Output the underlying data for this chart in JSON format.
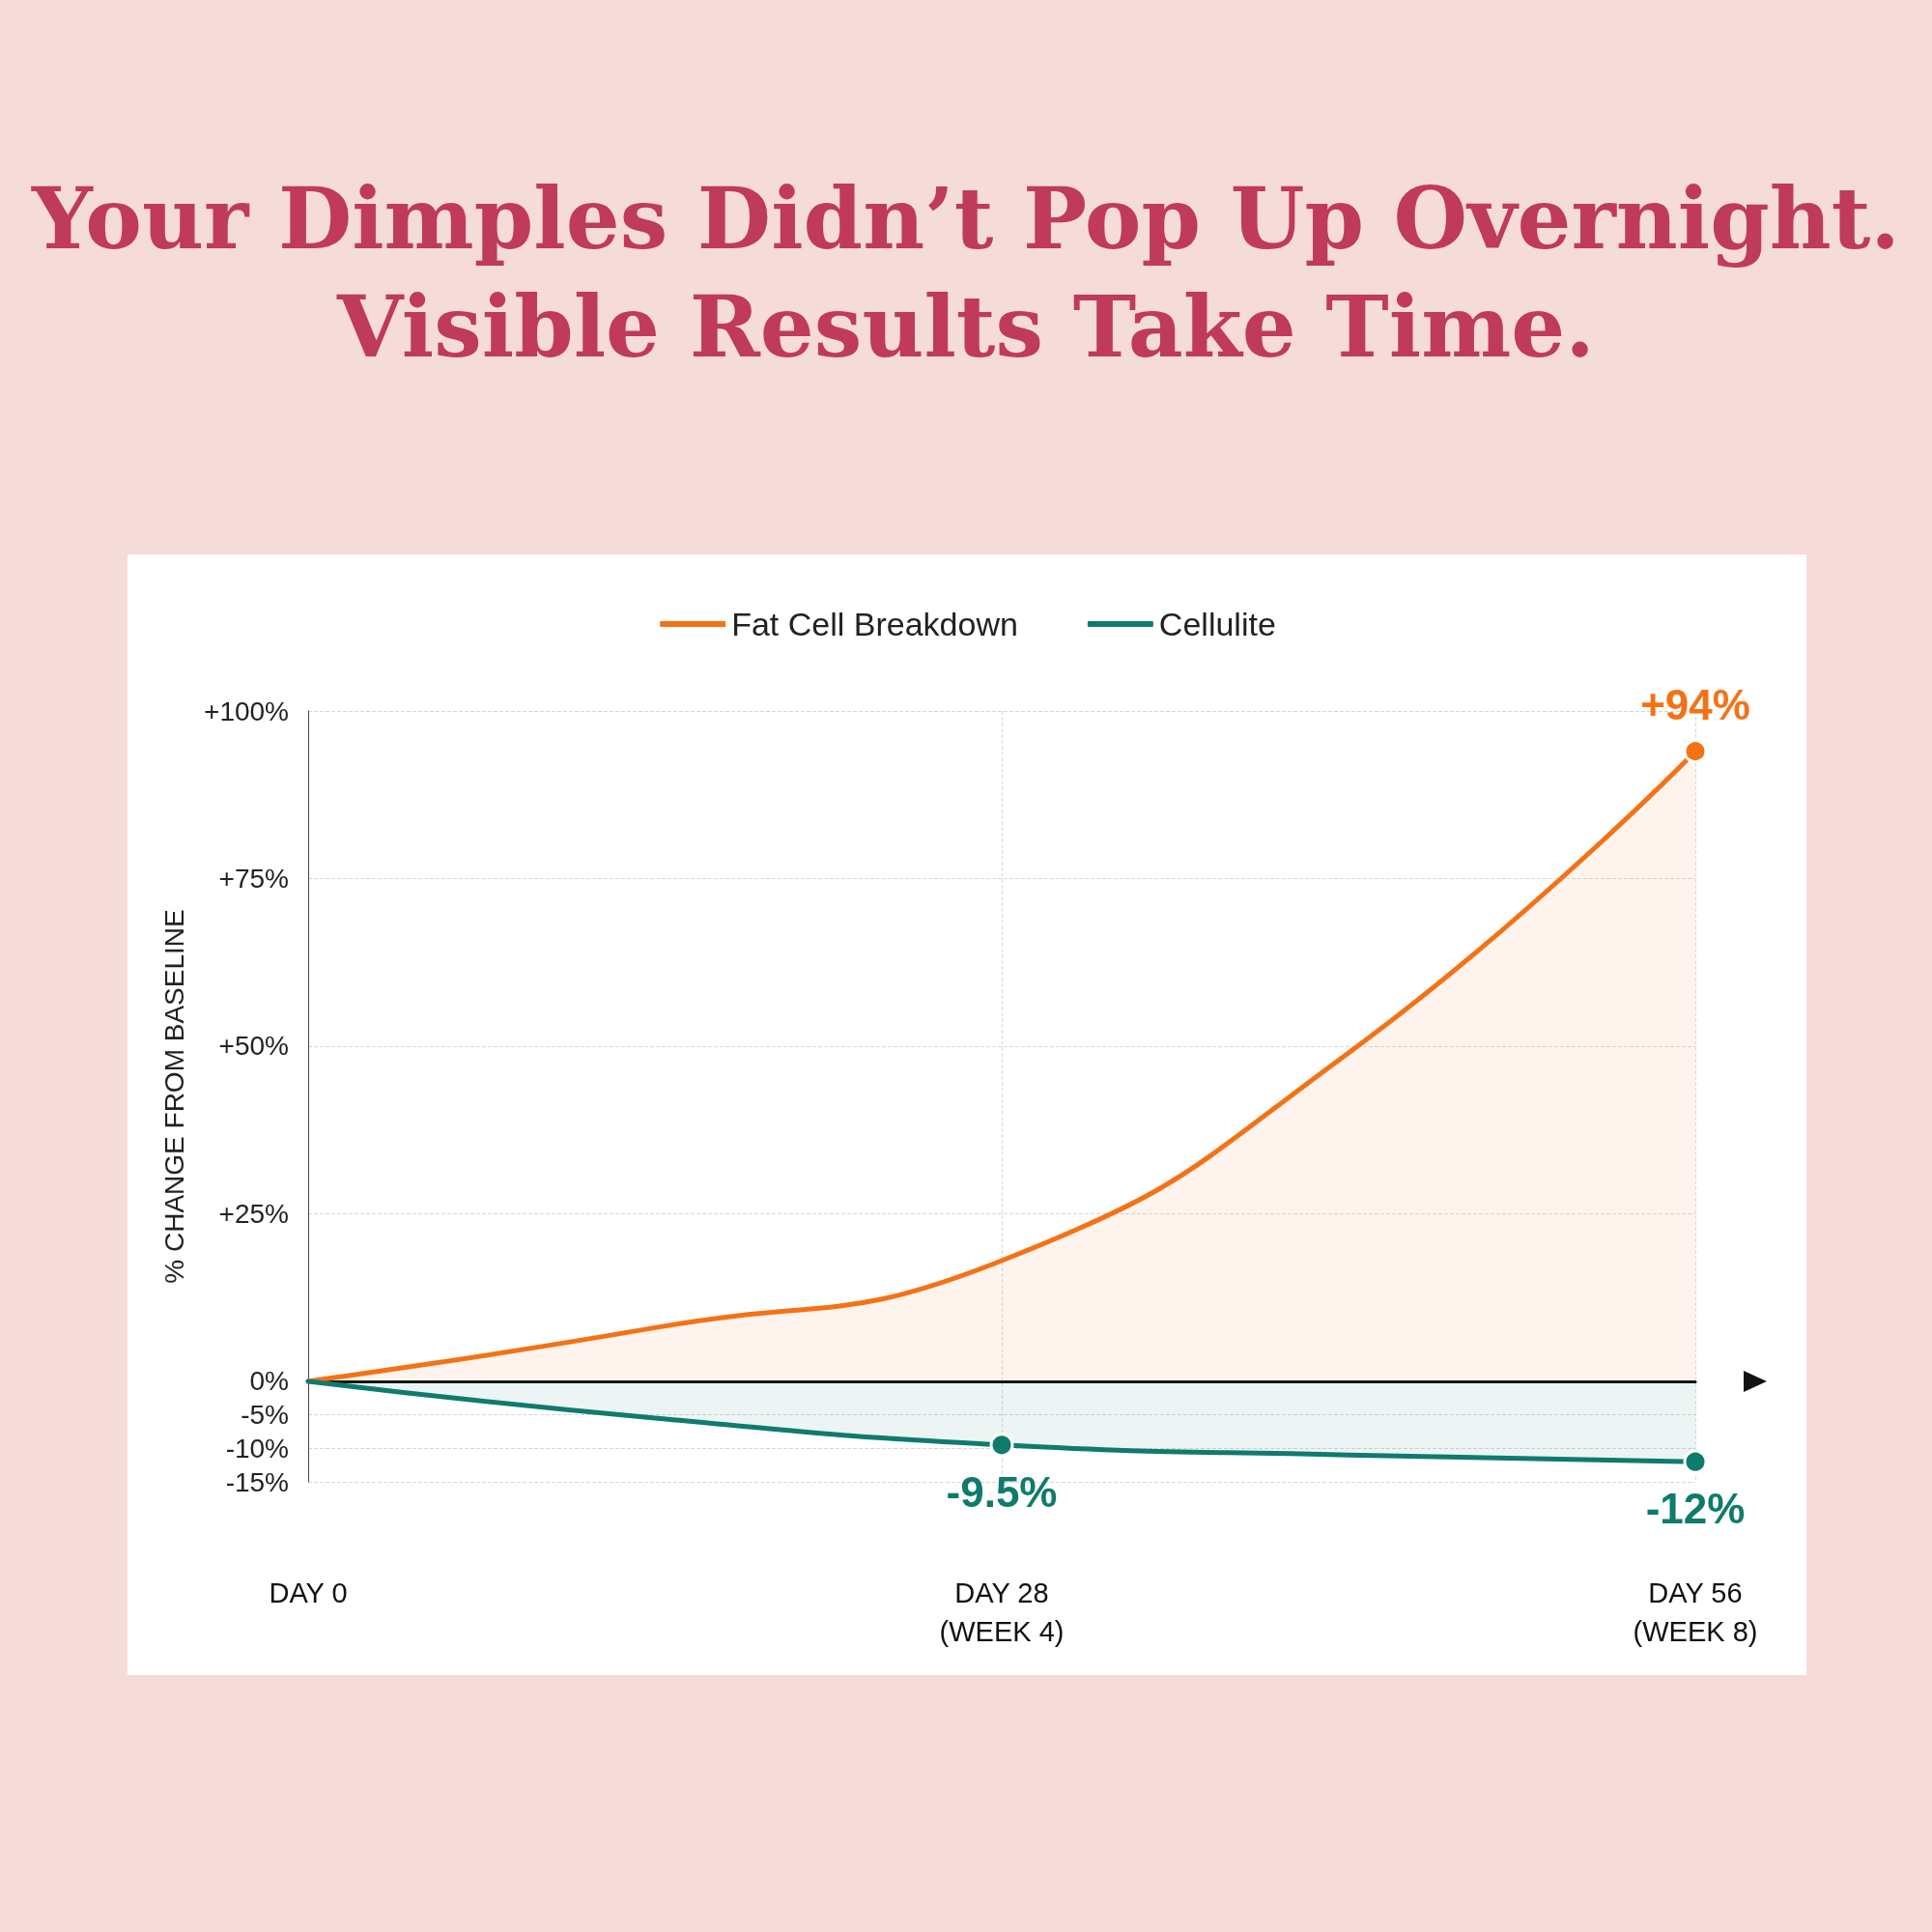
{
  "chart_data": {
    "type": "area",
    "title": "Your Dimples Didn’t Pop Up Overnight.",
    "subtitle": "Visible Results Take Time.",
    "ylabel": "% CHANGE FROM BASELINE",
    "categories": [
      "DAY 0",
      null,
      "DAY 28\n(WEEK 4)",
      null,
      "DAY 56\n(WEEK 8)"
    ],
    "ylim": [
      -15,
      100
    ],
    "yticks": [
      {
        "value": 100,
        "label": "+100%"
      },
      {
        "value": 75,
        "label": "+75%"
      },
      {
        "value": 50,
        "label": "+50%"
      },
      {
        "value": 25,
        "label": "+25%"
      },
      {
        "value": 0,
        "label": "0%"
      },
      {
        "value": -5,
        "label": "-5%"
      },
      {
        "value": -10,
        "label": "-10%"
      },
      {
        "value": -15,
        "label": "-15%"
      }
    ],
    "grid": true,
    "legend": "top",
    "line_style": "solid",
    "series": [
      {
        "name": "Fat Cell Breakdown",
        "color": "#f47216",
        "values": [
          0,
          8,
          18,
          49,
          94
        ],
        "value_labels": [
          null,
          null,
          null,
          null,
          "+94%"
        ]
      },
      {
        "name": "Cellulite",
        "color": "#0f7b6c",
        "values": [
          0,
          -5.5,
          -9.5,
          -11,
          -12
        ],
        "value_labels": [
          null,
          null,
          "-9.5%",
          null,
          "-12%"
        ]
      }
    ]
  }
}
